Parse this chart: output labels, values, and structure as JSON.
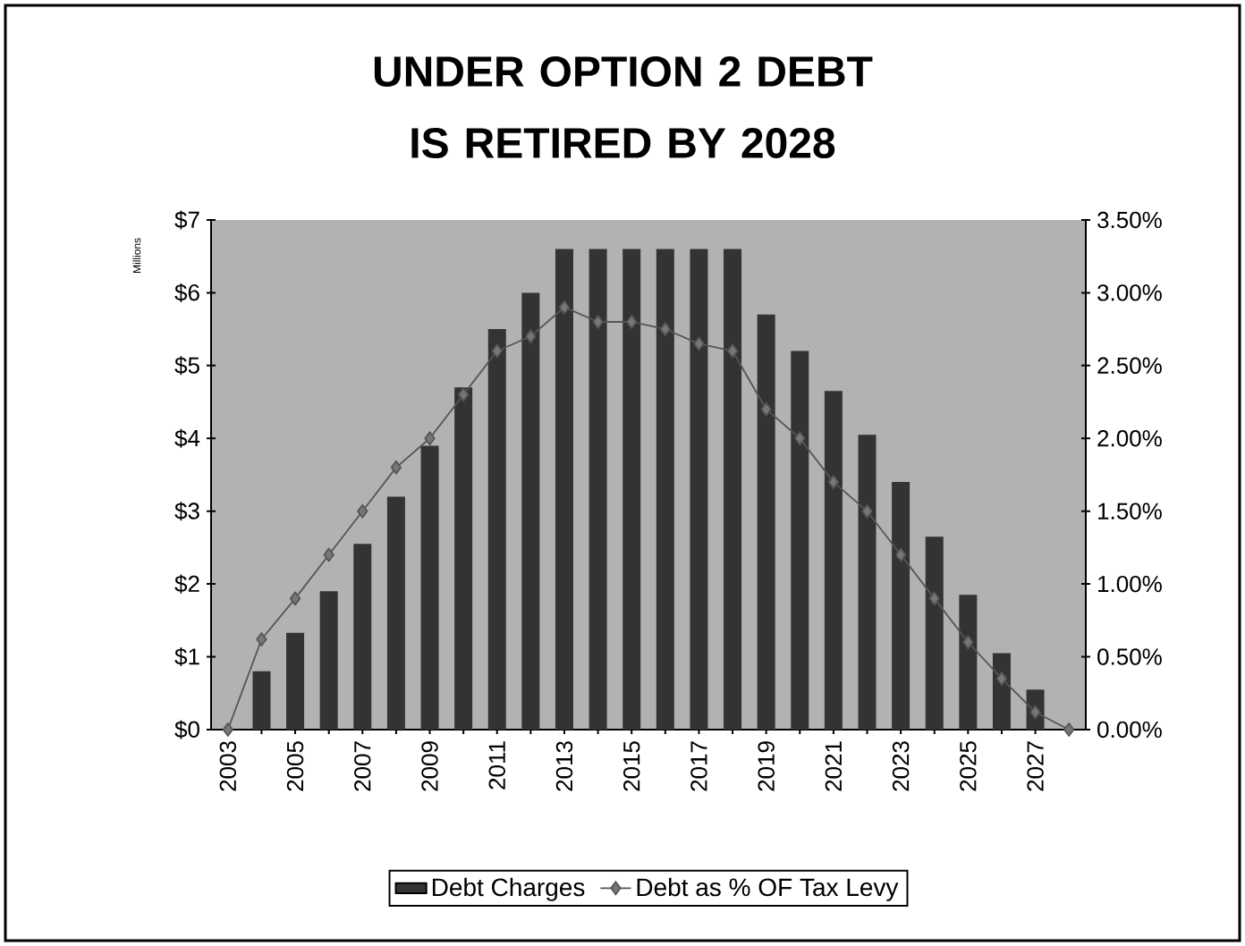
{
  "chart_data": {
    "type": "bar",
    "title": "UNDER OPTION 2 DEBT IS RETIRED BY 2028",
    "ylabel": "Millions",
    "categories": [
      "2003",
      null,
      "2005",
      null,
      "2007",
      null,
      "2009",
      null,
      "2011",
      null,
      "2013",
      null,
      "2015",
      null,
      "2017",
      null,
      "2019",
      null,
      "2021",
      null,
      "2023",
      null,
      "2025",
      null,
      "2027",
      null
    ],
    "series": [
      {
        "name": "Debt Charges",
        "type": "bar",
        "color": "#333333",
        "values": [
          0,
          0.8,
          1.33,
          1.9,
          2.55,
          3.2,
          3.9,
          4.7,
          5.5,
          6.0,
          6.6,
          6.6,
          6.6,
          6.6,
          6.6,
          6.6,
          5.7,
          5.2,
          4.65,
          4.05,
          3.4,
          2.65,
          1.85,
          1.05,
          0.55,
          0
        ]
      },
      {
        "name": "Debt as % OF Tax Levy",
        "type": "line",
        "axis": "y2",
        "marker": "diamond",
        "color": "#555555",
        "values": [
          0,
          0.62,
          0.9,
          1.2,
          1.5,
          1.8,
          2.0,
          2.3,
          2.6,
          2.7,
          2.9,
          2.8,
          2.8,
          2.75,
          2.65,
          2.6,
          2.2,
          2.0,
          1.7,
          1.5,
          1.2,
          0.9,
          0.6,
          0.35,
          0.12,
          0
        ]
      }
    ],
    "ylim": [
      0,
      7
    ],
    "yticks": [
      {
        "value": 0,
        "label": "$0"
      },
      {
        "value": 1,
        "label": "$1"
      },
      {
        "value": 2,
        "label": "$2"
      },
      {
        "value": 3,
        "label": "$3"
      },
      {
        "value": 4,
        "label": "$4"
      },
      {
        "value": 5,
        "label": "$5"
      },
      {
        "value": 6,
        "label": "$6"
      },
      {
        "value": 7,
        "label": "$7"
      }
    ],
    "y2lim": [
      0,
      3.5
    ],
    "y2ticks": [
      {
        "value": 0,
        "label": "0.00%"
      },
      {
        "value": 0.5,
        "label": "0.50%"
      },
      {
        "value": 1,
        "label": "1.00%"
      },
      {
        "value": 1.5,
        "label": "1.50%"
      },
      {
        "value": 2,
        "label": "2.00%"
      },
      {
        "value": 2.5,
        "label": "2.50%"
      },
      {
        "value": 3,
        "label": "3.00%"
      },
      {
        "value": 3.5,
        "label": "3.50%"
      }
    ],
    "legend": "bottom"
  }
}
